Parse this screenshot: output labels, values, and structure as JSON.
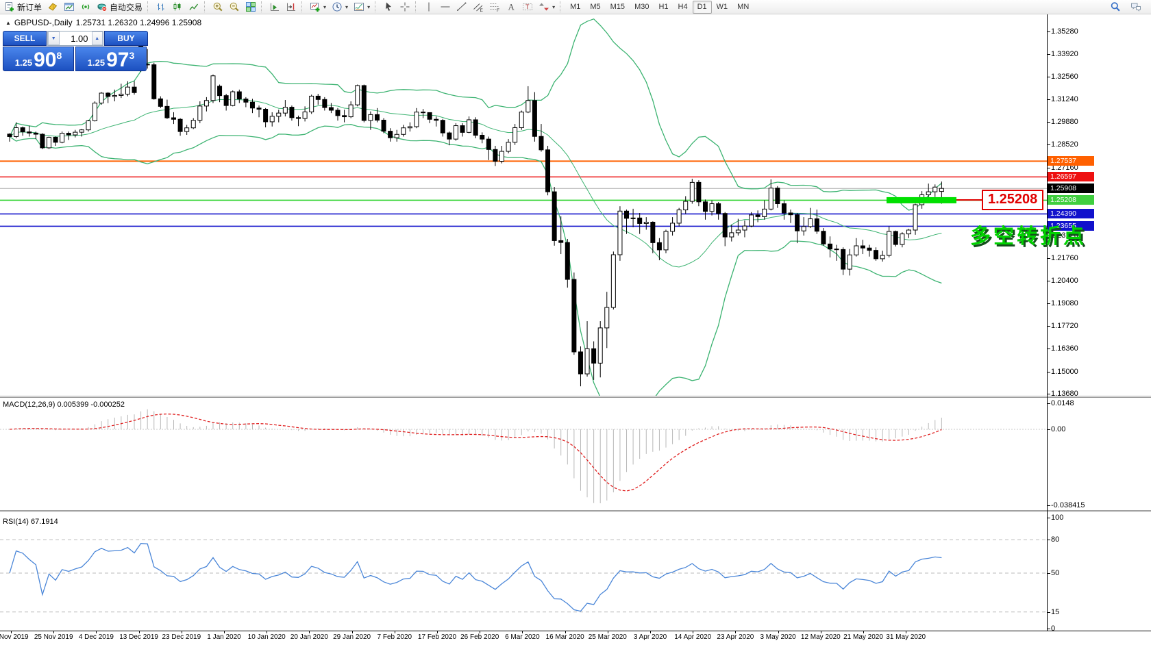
{
  "toolbar": {
    "groups": [
      {
        "items": [
          {
            "icon": "new-order",
            "label": "新订单"
          },
          {
            "icon": "history-book",
            "label": ""
          },
          {
            "icon": "chart-window",
            "label": ""
          },
          {
            "icon": "signals",
            "label": ""
          },
          {
            "icon": "auto-trading",
            "label": "自动交易"
          }
        ]
      },
      {
        "items": [
          {
            "icon": "bars",
            "label": ""
          },
          {
            "icon": "candles",
            "label": ""
          },
          {
            "icon": "line-chart",
            "label": ""
          }
        ]
      },
      {
        "items": [
          {
            "icon": "zoom-in",
            "label": ""
          },
          {
            "icon": "zoom-out",
            "label": ""
          },
          {
            "icon": "tile-windows",
            "label": ""
          }
        ]
      },
      {
        "items": [
          {
            "icon": "auto-scroll",
            "label": ""
          },
          {
            "icon": "chart-shift",
            "label": ""
          }
        ]
      },
      {
        "items": [
          {
            "icon": "indicators",
            "label": "",
            "caret": true
          },
          {
            "icon": "periods",
            "label": "",
            "caret": true
          },
          {
            "icon": "templates",
            "label": "",
            "caret": true
          }
        ]
      },
      {
        "items": [
          {
            "icon": "cursor",
            "label": ""
          },
          {
            "icon": "crosshair",
            "label": ""
          }
        ]
      },
      {
        "items": [
          {
            "icon": "vline",
            "label": ""
          },
          {
            "icon": "hline",
            "label": ""
          },
          {
            "icon": "trendline",
            "label": ""
          },
          {
            "icon": "channel",
            "label": ""
          },
          {
            "icon": "fibonacci",
            "label": ""
          },
          {
            "icon": "text",
            "label": ""
          },
          {
            "icon": "text-label",
            "label": ""
          },
          {
            "icon": "arrows",
            "label": "",
            "caret": true
          }
        ]
      }
    ],
    "timeframes": [
      "M1",
      "M5",
      "M15",
      "M30",
      "H1",
      "H4",
      "D1",
      "W1",
      "MN"
    ],
    "active_timeframe": "D1",
    "right_icons": [
      "search",
      "chat"
    ]
  },
  "chart": {
    "title": {
      "symbol": "GBPUSD-,Daily",
      "ohlc": "1.25731 1.26320 1.24996 1.25908"
    },
    "trade_panel": {
      "sell_label": "SELL",
      "buy_label": "BUY",
      "volume": "1.00",
      "sell_price": {
        "prefix": "1.25",
        "big": "90",
        "sup": "8"
      },
      "buy_price": {
        "prefix": "1.25",
        "big": "97",
        "sup": "3"
      }
    },
    "price_axis_ticks": [
      "1.35280",
      "1.33920",
      "1.32560",
      "1.31240",
      "1.29880",
      "1.28520",
      "1.27160",
      "1.23120",
      "1.21760",
      "1.20400",
      "1.19080",
      "1.17720",
      "1.16360",
      "1.15000",
      "1.13680"
    ],
    "price_markers": [
      {
        "value": "1.27537",
        "bg": "#ff6000"
      },
      {
        "value": "1.26597",
        "bg": "#ee1111"
      },
      {
        "value": "1.25908",
        "bg": "#000000"
      },
      {
        "value": "1.25208",
        "bg": "#3fcf3f"
      },
      {
        "value": "1.24390",
        "bg": "#1111cc"
      },
      {
        "value": "1.23655",
        "bg": "#1111cc"
      }
    ],
    "hlines": [
      {
        "price": 1.27537,
        "color": "#ff6000",
        "width": 2,
        "dash": false
      },
      {
        "price": 1.26597,
        "color": "#ee1111",
        "width": 1.6,
        "dash": false
      },
      {
        "price": 1.25908,
        "color": "#aaaaaa",
        "width": 1,
        "dash": false
      },
      {
        "price": 1.25208,
        "color": "#2fd42f",
        "width": 1.6,
        "dash": false
      },
      {
        "price": 1.2439,
        "color": "#1414cc",
        "width": 1.6,
        "dash": false
      },
      {
        "price": 1.23655,
        "color": "#1414cc",
        "width": 1.6,
        "dash": false
      }
    ],
    "objects": {
      "highlight_price": 1.25208,
      "highlight_color": "#00e000",
      "callout_text": "1.25208",
      "annotation_text": "多空转折点"
    },
    "indicators": {
      "bollinger": {
        "period": 20,
        "deviation": 2,
        "color": "#3cb371"
      },
      "macd": {
        "label": "MACD(12,26,9) 0.005399 -0.000252",
        "axis_labels": [
          "0.0148",
          "0.00",
          "-0.038415"
        ],
        "histogram_color": "#b8b8b8",
        "signal_color": "#e02020"
      },
      "rsi": {
        "label": "RSI(14) 67.1914",
        "axis_labels": [
          "100",
          "80",
          "50",
          "15",
          "0"
        ],
        "level_lines": [
          80,
          50,
          15
        ],
        "line_color": "#4a86d8"
      }
    },
    "date_axis": [
      "5 Nov 2019",
      "25 Nov 2019",
      "4 Dec 2019",
      "13 Dec 2019",
      "23 Dec 2019",
      "1 Jan 2020",
      "10 Jan 2020",
      "20 Jan 2020",
      "29 Jan 2020",
      "7 Feb 2020",
      "17 Feb 2020",
      "26 Feb 2020",
      "6 Mar 2020",
      "16 Mar 2020",
      "25 Mar 2020",
      "3 Apr 2020",
      "14 Apr 2020",
      "23 Apr 2020",
      "3 May 2020",
      "12 May 2020",
      "21 May 2020",
      "31 May 2020"
    ]
  },
  "chart_data": {
    "type": "candlestick",
    "symbol": "GBPUSD",
    "timeframe": "Daily",
    "y_ticks": [
      1.3528,
      1.3392,
      1.3256,
      1.3124,
      1.2988,
      1.2852,
      1.2716,
      1.258,
      1.2444,
      1.2312,
      1.2176,
      1.204,
      1.1908,
      1.1772,
      1.1636,
      1.15,
      1.1368
    ],
    "current_bid": 1.25908,
    "current_ask": 1.25973,
    "ohlc": [
      [
        1.2915,
        1.292,
        1.287,
        1.29
      ],
      [
        1.29,
        1.2985,
        1.289,
        1.2953
      ],
      [
        1.2953,
        1.296,
        1.2905,
        1.2928
      ],
      [
        1.2928,
        1.2965,
        1.29,
        1.2921
      ],
      [
        1.2921,
        1.293,
        1.2885,
        1.2914
      ],
      [
        1.2914,
        1.292,
        1.2825,
        1.2833
      ],
      [
        1.2833,
        1.29,
        1.2825,
        1.2896
      ],
      [
        1.2896,
        1.29,
        1.2845,
        1.2866
      ],
      [
        1.2866,
        1.293,
        1.286,
        1.292
      ],
      [
        1.292,
        1.293,
        1.288,
        1.291
      ],
      [
        1.291,
        1.294,
        1.2895,
        1.2926
      ],
      [
        1.2926,
        1.2945,
        1.29,
        1.294
      ],
      [
        1.294,
        1.3,
        1.293,
        1.2994
      ],
      [
        1.2994,
        1.311,
        1.299,
        1.31
      ],
      [
        1.31,
        1.3165,
        1.309,
        1.3159
      ],
      [
        1.3159,
        1.3165,
        1.31,
        1.3139
      ],
      [
        1.3139,
        1.318,
        1.311,
        1.3145
      ],
      [
        1.3145,
        1.3215,
        1.313,
        1.3153
      ],
      [
        1.3153,
        1.323,
        1.314,
        1.3195
      ],
      [
        1.3195,
        1.323,
        1.315,
        1.3162
      ],
      [
        1.345,
        1.3515,
        1.3285,
        1.3331
      ],
      [
        1.3331,
        1.3422,
        1.3305,
        1.3328
      ],
      [
        1.3328,
        1.334,
        1.312,
        1.3125
      ],
      [
        1.3125,
        1.314,
        1.307,
        1.308
      ],
      [
        1.308,
        1.312,
        1.3005,
        1.3012
      ],
      [
        1.3012,
        1.3045,
        1.2975,
        1.3003
      ],
      [
        1.3003,
        1.301,
        1.2905,
        1.293
      ],
      [
        1.293,
        1.297,
        1.291,
        1.2952
      ],
      [
        1.2952,
        1.301,
        1.2945,
        1.2997
      ],
      [
        1.2997,
        1.311,
        1.298,
        1.3082
      ],
      [
        1.3082,
        1.3135,
        1.305,
        1.3115
      ],
      [
        1.3115,
        1.327,
        1.31,
        1.3262
      ],
      [
        1.32,
        1.321,
        1.3105,
        1.3144
      ],
      [
        1.3144,
        1.3155,
        1.3055,
        1.3085
      ],
      [
        1.3085,
        1.3175,
        1.308,
        1.3167
      ],
      [
        1.3167,
        1.318,
        1.31,
        1.3124
      ],
      [
        1.3124,
        1.3135,
        1.3075,
        1.3105
      ],
      [
        1.3105,
        1.3125,
        1.304,
        1.307
      ],
      [
        1.307,
        1.3085,
        1.3015,
        1.3063
      ],
      [
        1.3063,
        1.307,
        1.2955,
        1.2988
      ],
      [
        1.2988,
        1.3045,
        1.296,
        1.3021
      ],
      [
        1.3021,
        1.306,
        1.2985,
        1.304
      ],
      [
        1.304,
        1.3118,
        1.302,
        1.3075
      ],
      [
        1.3075,
        1.3085,
        1.2995,
        1.3013
      ],
      [
        1.3013,
        1.3025,
        1.2962,
        1.3008
      ],
      [
        1.3008,
        1.308,
        1.299,
        1.3047
      ],
      [
        1.3047,
        1.315,
        1.3035,
        1.3141
      ],
      [
        1.3141,
        1.3155,
        1.309,
        1.3121
      ],
      [
        1.3121,
        1.3135,
        1.3055,
        1.3073
      ],
      [
        1.3073,
        1.31,
        1.304,
        1.3057
      ],
      [
        1.3057,
        1.307,
        1.2995,
        1.3025
      ],
      [
        1.3025,
        1.306,
        1.2985,
        1.3018
      ],
      [
        1.3018,
        1.311,
        1.301,
        1.3089
      ],
      [
        1.3089,
        1.321,
        1.308,
        1.3204
      ],
      [
        1.3204,
        1.321,
        1.2985,
        1.2996
      ],
      [
        1.2996,
        1.305,
        1.294,
        1.3031
      ],
      [
        1.3031,
        1.307,
        1.2985,
        1.2998
      ],
      [
        1.2998,
        1.301,
        1.292,
        1.2932
      ],
      [
        1.2932,
        1.295,
        1.287,
        1.2893
      ],
      [
        1.2893,
        1.294,
        1.287,
        1.2913
      ],
      [
        1.2913,
        1.297,
        1.29,
        1.2952
      ],
      [
        1.2952,
        1.2985,
        1.293,
        1.2959
      ],
      [
        1.2959,
        1.307,
        1.295,
        1.3046
      ],
      [
        1.3046,
        1.3065,
        1.301,
        1.3043
      ],
      [
        1.3043,
        1.3045,
        1.298,
        1.3003
      ],
      [
        1.3003,
        1.302,
        1.296,
        1.2997
      ],
      [
        1.2997,
        1.3005,
        1.29,
        1.2922
      ],
      [
        1.2922,
        1.293,
        1.2848,
        1.2885
      ],
      [
        1.2885,
        1.298,
        1.2875,
        1.2965
      ],
      [
        1.2965,
        1.298,
        1.29,
        1.2925
      ],
      [
        1.2925,
        1.302,
        1.292,
        1.3
      ],
      [
        1.3,
        1.3015,
        1.289,
        1.2908
      ],
      [
        1.2908,
        1.2925,
        1.286,
        1.2885
      ],
      [
        1.2885,
        1.29,
        1.276,
        1.2823
      ],
      [
        1.2823,
        1.2845,
        1.2725,
        1.2753
      ],
      [
        1.2753,
        1.2845,
        1.274,
        1.2812
      ],
      [
        1.2812,
        1.2885,
        1.28,
        1.2866
      ],
      [
        1.2866,
        1.2975,
        1.285,
        1.2953
      ],
      [
        1.2953,
        1.3055,
        1.294,
        1.3046
      ],
      [
        1.3046,
        1.32,
        1.304,
        1.3115
      ],
      [
        1.3115,
        1.3165,
        1.287,
        1.2901
      ],
      [
        1.2901,
        1.2975,
        1.281,
        1.2821
      ],
      [
        1.2821,
        1.2845,
        1.255,
        1.2571
      ],
      [
        1.2571,
        1.26,
        1.225,
        1.228
      ],
      [
        1.228,
        1.2425,
        1.22,
        1.2269
      ],
      [
        1.2269,
        1.229,
        1.2,
        1.2049
      ],
      [
        1.2049,
        1.209,
        1.16,
        1.1617
      ],
      [
        1.1617,
        1.165,
        1.1412,
        1.1486
      ],
      [
        1.1486,
        1.18,
        1.147,
        1.1636
      ],
      [
        1.1636,
        1.168,
        1.145,
        1.155
      ],
      [
        1.155,
        1.18,
        1.1465,
        1.176
      ],
      [
        1.176,
        1.1975,
        1.164,
        1.1882
      ],
      [
        1.1882,
        1.2215,
        1.187,
        1.2196
      ],
      [
        1.2196,
        1.2485,
        1.216,
        1.2456
      ],
      [
        1.2456,
        1.2465,
        1.232,
        1.2413
      ],
      [
        1.2413,
        1.247,
        1.236,
        1.2415
      ],
      [
        1.2415,
        1.2445,
        1.232,
        1.2382
      ],
      [
        1.2382,
        1.242,
        1.2345,
        1.239
      ],
      [
        1.239,
        1.2395,
        1.2205,
        1.2268
      ],
      [
        1.2268,
        1.2295,
        1.2163,
        1.2225
      ],
      [
        1.2225,
        1.2345,
        1.2205,
        1.2335
      ],
      [
        1.2335,
        1.242,
        1.231,
        1.2384
      ],
      [
        1.2384,
        1.2475,
        1.2365,
        1.2463
      ],
      [
        1.2463,
        1.2545,
        1.244,
        1.2514
      ],
      [
        1.2514,
        1.2648,
        1.25,
        1.2627
      ],
      [
        1.2627,
        1.264,
        1.2485,
        1.2511
      ],
      [
        1.2511,
        1.2525,
        1.2405,
        1.2454
      ],
      [
        1.2454,
        1.252,
        1.243,
        1.25
      ],
      [
        1.25,
        1.251,
        1.2405,
        1.2442
      ],
      [
        1.2442,
        1.245,
        1.2247,
        1.2302
      ],
      [
        1.2302,
        1.2375,
        1.2275,
        1.2327
      ],
      [
        1.2327,
        1.241,
        1.231,
        1.2343
      ],
      [
        1.2343,
        1.24,
        1.23,
        1.2367
      ],
      [
        1.2367,
        1.245,
        1.236,
        1.2433
      ],
      [
        1.2433,
        1.246,
        1.239,
        1.2423
      ],
      [
        1.2423,
        1.252,
        1.2405,
        1.2468
      ],
      [
        1.2468,
        1.2645,
        1.246,
        1.2593
      ],
      [
        1.2593,
        1.2605,
        1.2475,
        1.25
      ],
      [
        1.25,
        1.252,
        1.2405,
        1.2445
      ],
      [
        1.2445,
        1.2465,
        1.2385,
        1.2434
      ],
      [
        1.2434,
        1.2445,
        1.2265,
        1.2338
      ],
      [
        1.2338,
        1.242,
        1.231,
        1.2364
      ],
      [
        1.2364,
        1.2475,
        1.2355,
        1.241
      ],
      [
        1.241,
        1.2465,
        1.232,
        1.2336
      ],
      [
        1.2336,
        1.2355,
        1.225,
        1.226
      ],
      [
        1.226,
        1.2305,
        1.218,
        1.223
      ],
      [
        1.223,
        1.2255,
        1.216,
        1.2227
      ],
      [
        1.2227,
        1.224,
        1.2075,
        1.211
      ],
      [
        1.211,
        1.223,
        1.2072,
        1.2195
      ],
      [
        1.2195,
        1.2295,
        1.2185,
        1.2249
      ],
      [
        1.2249,
        1.2285,
        1.22,
        1.2236
      ],
      [
        1.2236,
        1.2255,
        1.2185,
        1.2222
      ],
      [
        1.2222,
        1.224,
        1.216,
        1.2172
      ],
      [
        1.2172,
        1.222,
        1.2155,
        1.2192
      ],
      [
        1.2192,
        1.2365,
        1.218,
        1.2335
      ],
      [
        1.2335,
        1.234,
        1.2245,
        1.2257
      ],
      [
        1.2257,
        1.233,
        1.224,
        1.232
      ],
      [
        1.232,
        1.235,
        1.2295,
        1.2343
      ],
      [
        1.2343,
        1.25,
        1.2315,
        1.2494
      ],
      [
        1.2494,
        1.2575,
        1.247,
        1.2553
      ],
      [
        1.2553,
        1.262,
        1.252,
        1.2571
      ],
      [
        1.2571,
        1.2615,
        1.254,
        1.2599
      ],
      [
        1.2573,
        1.2632,
        1.25,
        1.2591
      ]
    ]
  }
}
